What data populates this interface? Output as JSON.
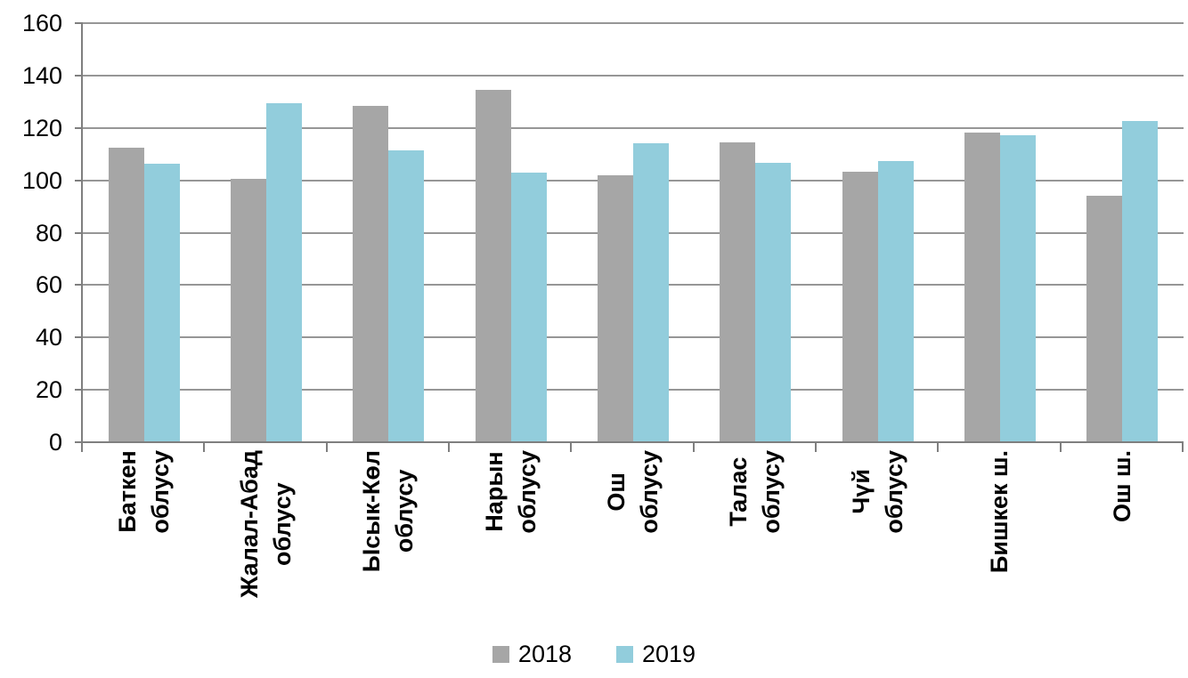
{
  "chart_data": {
    "type": "bar",
    "title": "",
    "categories": [
      "Баткен\nоблусу",
      "Жалал-Абад\nоблусу",
      "Ысык-Көл\nоблусу",
      "Нарын\nоблусу",
      "Ош\nоблусу",
      "Талас\nоблусу",
      "Чүй\nоблусу",
      "Бишкек ш.",
      "Ош ш."
    ],
    "series": [
      {
        "name": "2018",
        "color": "#A6A6A6",
        "values": [
          112.4,
          100.5,
          128.3,
          134.4,
          101.8,
          114.5,
          103.4,
          118.2,
          94.0
        ]
      },
      {
        "name": "2019",
        "color": "#92CDDC",
        "values": [
          106.4,
          129.4,
          111.4,
          102.8,
          114.2,
          106.5,
          107.2,
          117.2,
          122.6
        ]
      }
    ],
    "xlabel": "",
    "ylabel": "",
    "ylim": [
      0,
      160
    ],
    "y_step": 20,
    "y_tick_labels": [
      "0",
      "20",
      "40",
      "60",
      "80",
      "100",
      "120",
      "140",
      "160"
    ],
    "grid": "horizontal",
    "legend_position": "bottom",
    "axis_color": "#7F7F7F",
    "gridline_color": "#969696"
  }
}
